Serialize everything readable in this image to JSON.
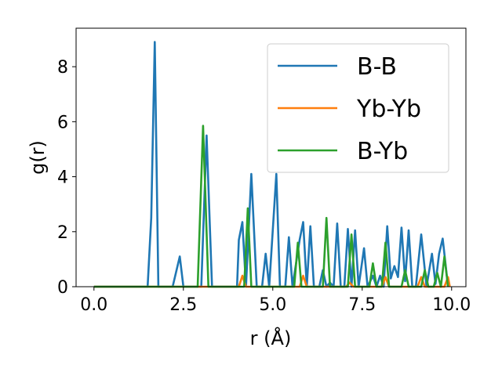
{
  "chart_data": {
    "type": "line",
    "title": "",
    "xlabel": "r (Å)",
    "ylabel": "g(r)",
    "xlim": [
      -0.5,
      10.4
    ],
    "ylim": [
      0,
      9.4
    ],
    "xticks": [
      0.0,
      2.5,
      5.0,
      7.5,
      10.0
    ],
    "xtick_labels": [
      "0.0",
      "2.5",
      "5.0",
      "7.5",
      "10.0"
    ],
    "yticks": [
      0,
      2,
      4,
      6,
      8
    ],
    "ytick_labels": [
      "0",
      "2",
      "4",
      "6",
      "8"
    ],
    "grid": false,
    "legend_position": "top-right",
    "series": [
      {
        "name": "B-B",
        "color": "#1f77b4",
        "points": [
          [
            0.0,
            0
          ],
          [
            1.5,
            0
          ],
          [
            1.6,
            2.5
          ],
          [
            1.7,
            8.9
          ],
          [
            1.8,
            0
          ],
          [
            2.2,
            0
          ],
          [
            2.4,
            1.1
          ],
          [
            2.5,
            0
          ],
          [
            3.0,
            0
          ],
          [
            3.15,
            5.5
          ],
          [
            3.3,
            0
          ],
          [
            4.0,
            0
          ],
          [
            4.05,
            1.7
          ],
          [
            4.15,
            2.35
          ],
          [
            4.25,
            0
          ],
          [
            4.4,
            4.1
          ],
          [
            4.55,
            0
          ],
          [
            4.7,
            0
          ],
          [
            4.8,
            1.2
          ],
          [
            4.9,
            0
          ],
          [
            5.1,
            4.1
          ],
          [
            5.2,
            0
          ],
          [
            5.35,
            0
          ],
          [
            5.45,
            1.8
          ],
          [
            5.55,
            0
          ],
          [
            5.75,
            1.7
          ],
          [
            5.85,
            2.35
          ],
          [
            5.95,
            0
          ],
          [
            6.05,
            2.2
          ],
          [
            6.15,
            0
          ],
          [
            6.3,
            0
          ],
          [
            6.4,
            0.6
          ],
          [
            6.5,
            0
          ],
          [
            6.6,
            0.15
          ],
          [
            6.7,
            0
          ],
          [
            6.8,
            2.3
          ],
          [
            6.9,
            0
          ],
          [
            7.0,
            0
          ],
          [
            7.1,
            2.1
          ],
          [
            7.2,
            0
          ],
          [
            7.3,
            2.05
          ],
          [
            7.4,
            0
          ],
          [
            7.55,
            1.4
          ],
          [
            7.65,
            0
          ],
          [
            7.8,
            0.4
          ],
          [
            7.9,
            0
          ],
          [
            8.0,
            0.4
          ],
          [
            8.1,
            0
          ],
          [
            8.2,
            2.2
          ],
          [
            8.3,
            0.3
          ],
          [
            8.4,
            0.75
          ],
          [
            8.5,
            0.35
          ],
          [
            8.6,
            2.15
          ],
          [
            8.7,
            0.2
          ],
          [
            8.8,
            2.05
          ],
          [
            8.9,
            0
          ],
          [
            9.0,
            0
          ],
          [
            9.15,
            1.9
          ],
          [
            9.3,
            0
          ],
          [
            9.45,
            1.2
          ],
          [
            9.55,
            0.1
          ],
          [
            9.65,
            1.2
          ],
          [
            9.75,
            1.75
          ],
          [
            9.9,
            0
          ]
        ]
      },
      {
        "name": "Yb-Yb",
        "color": "#ff7f0e",
        "points": [
          [
            0.0,
            0
          ],
          [
            4.05,
            0
          ],
          [
            4.15,
            0.4
          ],
          [
            4.25,
            0
          ],
          [
            5.75,
            0
          ],
          [
            5.85,
            0.4
          ],
          [
            5.95,
            0
          ],
          [
            7.05,
            0
          ],
          [
            7.15,
            0.15
          ],
          [
            7.25,
            0
          ],
          [
            8.05,
            0
          ],
          [
            8.15,
            0.35
          ],
          [
            8.25,
            0
          ],
          [
            9.05,
            0
          ],
          [
            9.15,
            0.35
          ],
          [
            9.25,
            0
          ],
          [
            9.8,
            0
          ],
          [
            9.9,
            0.35
          ],
          [
            9.95,
            0
          ]
        ]
      },
      {
        "name": "B-Yb",
        "color": "#2ca02c",
        "points": [
          [
            0.0,
            0
          ],
          [
            2.9,
            0
          ],
          [
            3.05,
            5.85
          ],
          [
            3.2,
            0
          ],
          [
            4.2,
            0
          ],
          [
            4.3,
            2.85
          ],
          [
            4.4,
            0
          ],
          [
            5.6,
            0
          ],
          [
            5.7,
            1.6
          ],
          [
            5.8,
            0
          ],
          [
            6.4,
            0
          ],
          [
            6.5,
            2.5
          ],
          [
            6.6,
            0
          ],
          [
            7.1,
            0
          ],
          [
            7.2,
            1.9
          ],
          [
            7.3,
            0
          ],
          [
            7.7,
            0
          ],
          [
            7.8,
            0.85
          ],
          [
            7.9,
            0
          ],
          [
            8.05,
            0
          ],
          [
            8.15,
            1.6
          ],
          [
            8.25,
            0
          ],
          [
            8.6,
            0
          ],
          [
            8.7,
            0.6
          ],
          [
            8.8,
            0
          ],
          [
            9.15,
            0
          ],
          [
            9.25,
            0.6
          ],
          [
            9.35,
            0
          ],
          [
            9.5,
            0
          ],
          [
            9.6,
            0.5
          ],
          [
            9.7,
            0
          ],
          [
            9.8,
            1.1
          ],
          [
            9.9,
            0
          ]
        ]
      }
    ]
  }
}
